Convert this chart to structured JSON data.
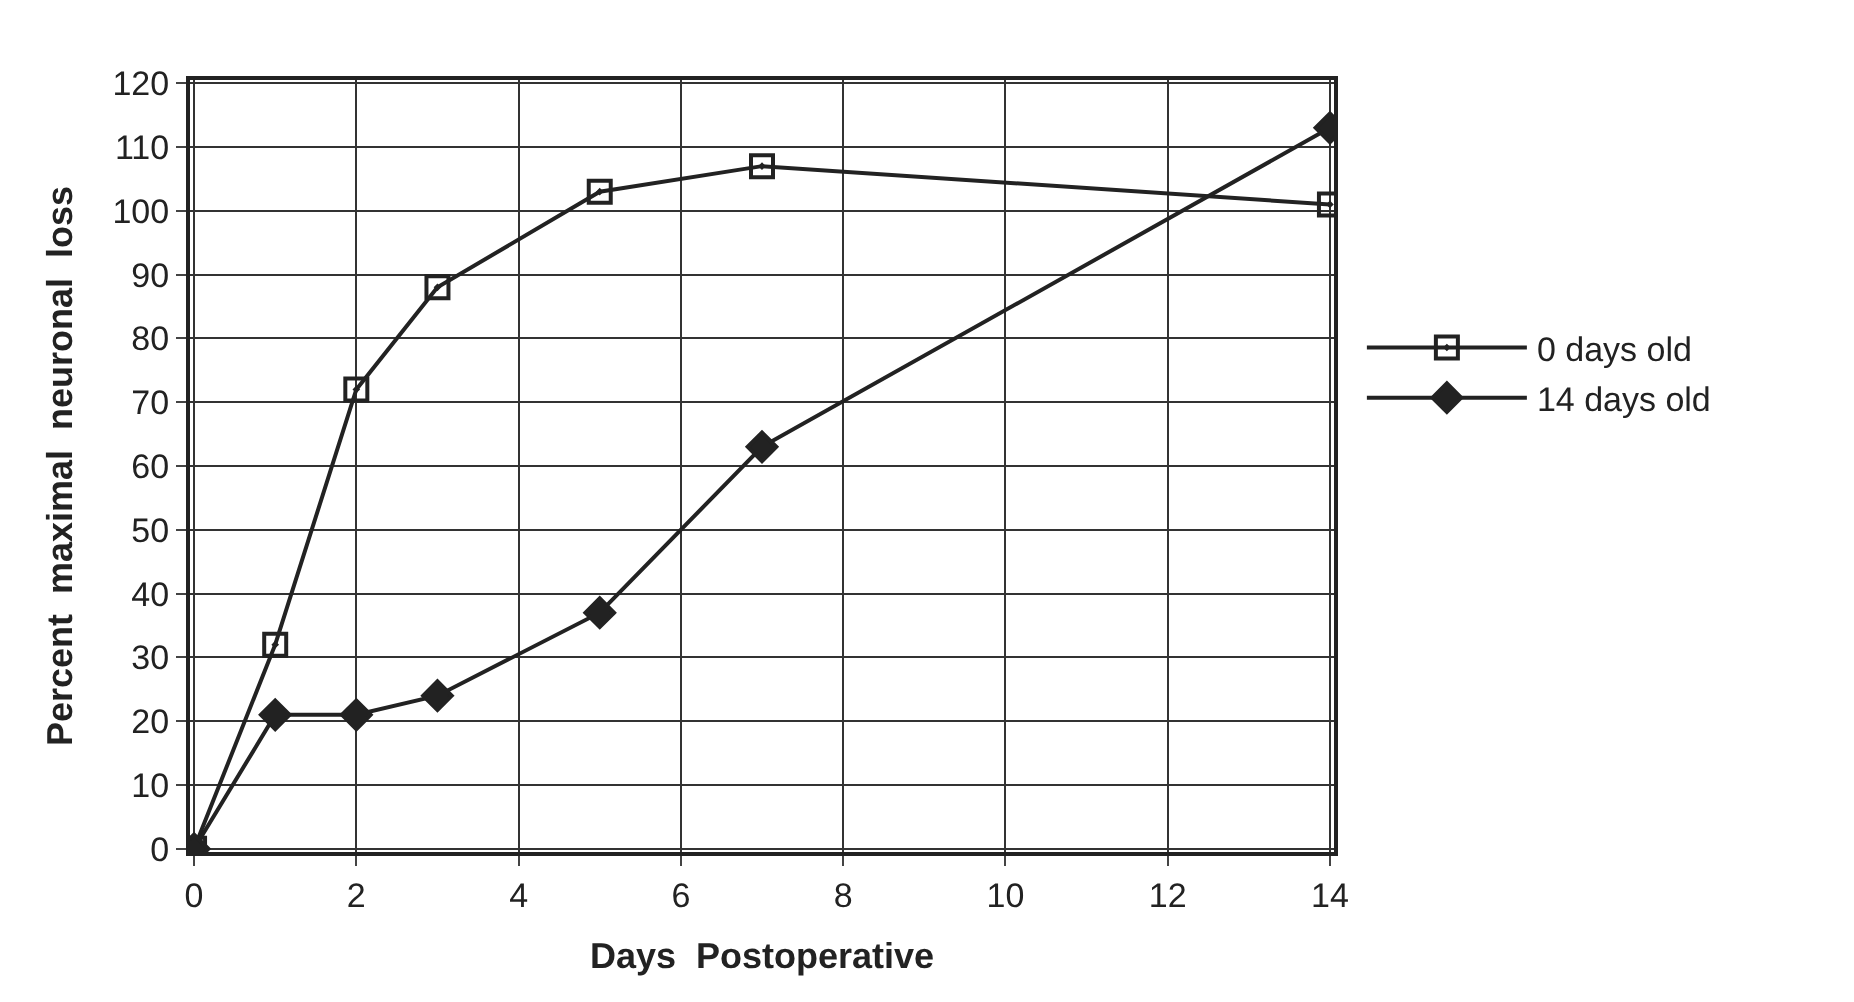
{
  "chart_data": {
    "type": "line",
    "xlabel": "Days  Postoperative",
    "ylabel": "Percent  maximal  neuronal  loss",
    "xlim": [
      0,
      14
    ],
    "xticks": [
      0,
      2,
      4,
      6,
      8,
      10,
      12,
      14
    ],
    "ylim": [
      0,
      120
    ],
    "yticks": [
      0,
      10,
      20,
      30,
      40,
      50,
      60,
      70,
      80,
      90,
      100,
      110,
      120
    ],
    "grid": true,
    "legend": "right",
    "series": [
      {
        "name": "0 days old",
        "color": "#222222",
        "marker": "square",
        "x": [
          0,
          1,
          2,
          3,
          5,
          7,
          14
        ],
        "values": [
          0,
          32,
          72,
          88,
          103,
          107,
          101
        ]
      },
      {
        "name": "14 days old",
        "color": "#222222",
        "marker": "diamond",
        "x": [
          0,
          1,
          2,
          3,
          5,
          7,
          14
        ],
        "values": [
          0,
          21,
          21,
          24,
          37,
          63,
          113
        ]
      }
    ]
  }
}
